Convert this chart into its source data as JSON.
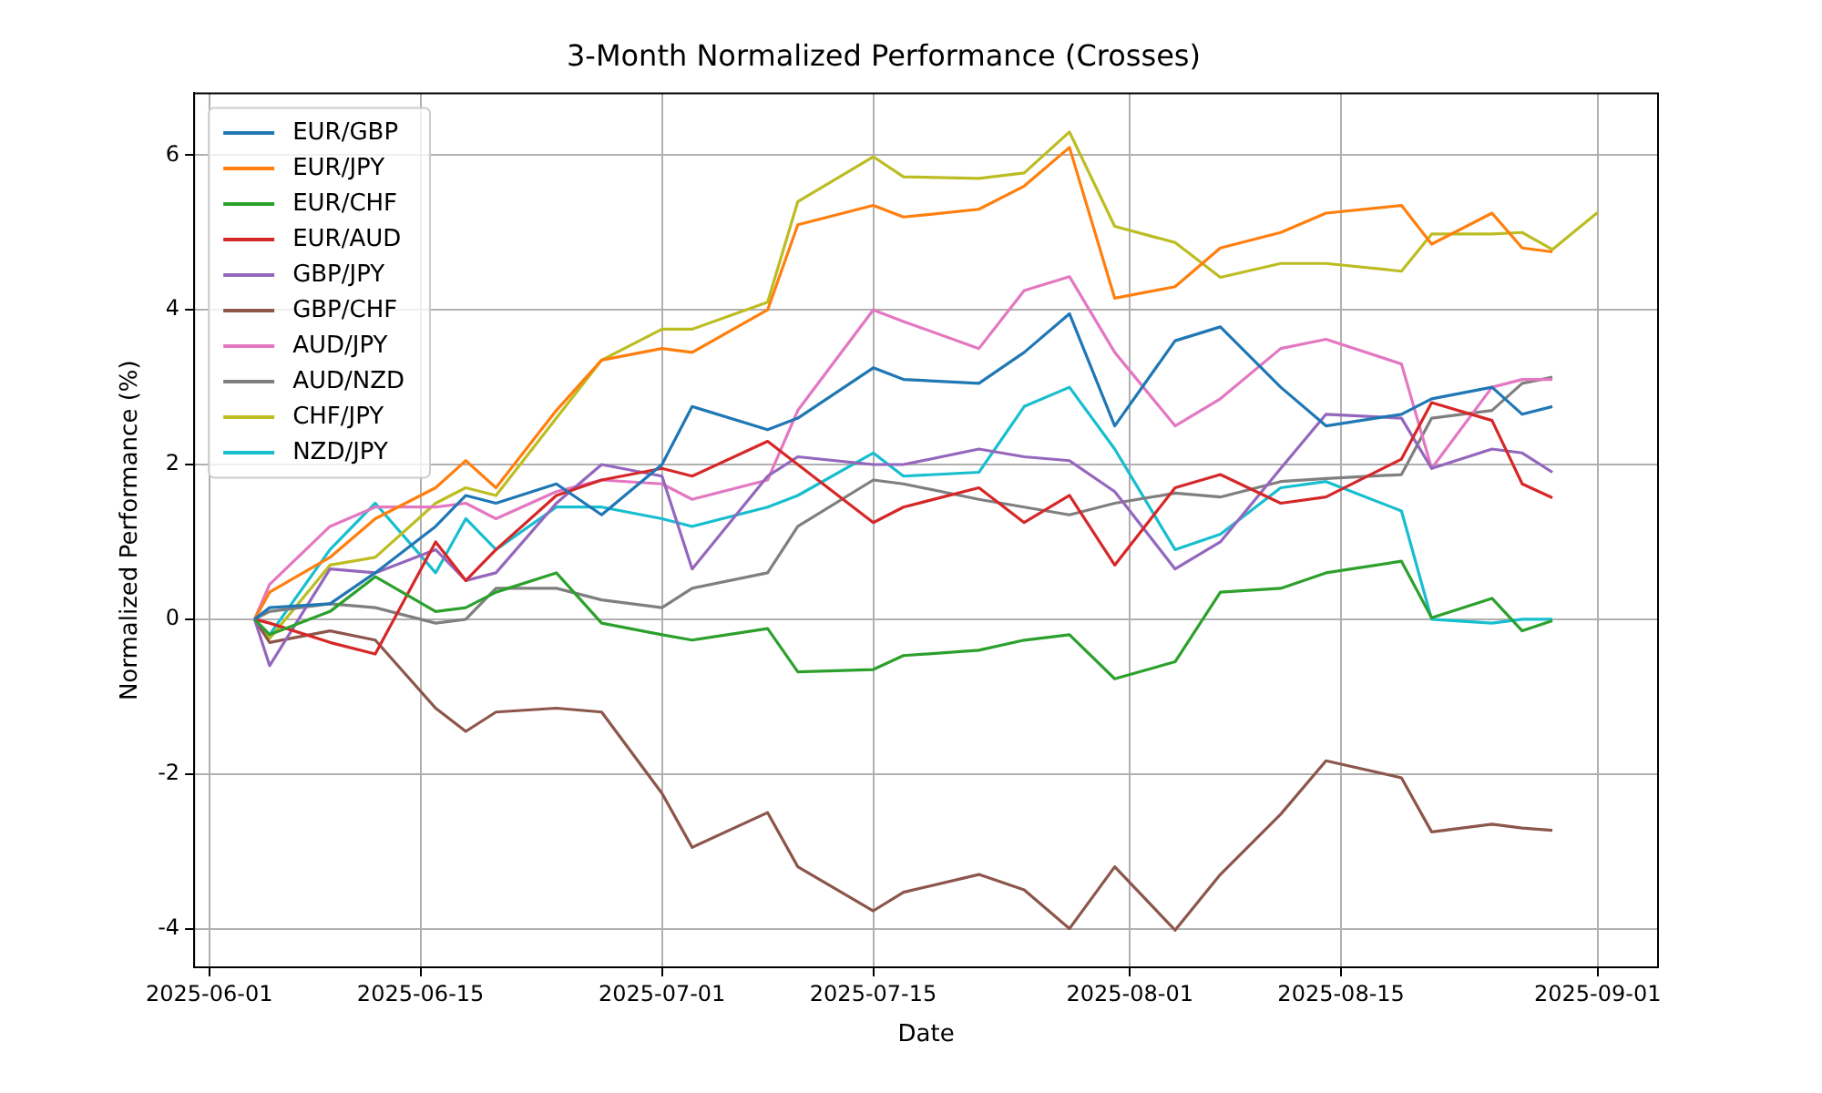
{
  "chart_data": {
    "type": "line",
    "title": "3-Month Normalized Performance (Crosses)",
    "xlabel": "Date",
    "ylabel": "Normalized Performance (%)",
    "x": [
      "2025-06-04",
      "2025-06-05",
      "2025-06-09",
      "2025-06-12",
      "2025-06-16",
      "2025-06-18",
      "2025-06-20",
      "2025-06-24",
      "2025-06-27",
      "2025-07-01",
      "2025-07-03",
      "2025-07-08",
      "2025-07-10",
      "2025-07-15",
      "2025-07-17",
      "2025-07-22",
      "2025-07-25",
      "2025-07-28",
      "2025-07-31",
      "2025-08-04",
      "2025-08-07",
      "2025-08-11",
      "2025-08-14",
      "2025-08-19",
      "2025-08-21",
      "2025-08-25",
      "2025-08-27",
      "2025-08-29"
    ],
    "xlim": [
      "2025-05-31",
      "2025-09-05"
    ],
    "xticks": [
      "2025-06-01",
      "2025-06-15",
      "2025-07-01",
      "2025-07-15",
      "2025-08-01",
      "2025-08-15",
      "2025-09-01"
    ],
    "ylim": [
      -4.5,
      6.8
    ],
    "yticks": [
      -4,
      -2,
      0,
      2,
      4,
      6
    ],
    "grid": true,
    "legend": "top left",
    "marker": "none",
    "line_style": "solid",
    "series": [
      {
        "name": "EUR/GBP",
        "color": "#1f77b4",
        "values": [
          0,
          0.15,
          0.2,
          0.6,
          1.2,
          1.6,
          1.5,
          1.75,
          1.35,
          2.0,
          2.75,
          2.45,
          2.6,
          3.25,
          3.1,
          3.05,
          3.45,
          3.95,
          2.5,
          3.6,
          3.78,
          3.0,
          2.5,
          2.65,
          2.85,
          3.0,
          2.65,
          2.75
        ]
      },
      {
        "name": "EUR/JPY",
        "color": "#ff7f0e",
        "values": [
          0,
          0.35,
          0.8,
          1.3,
          1.7,
          2.05,
          1.7,
          2.7,
          3.35,
          3.5,
          3.45,
          4.0,
          5.1,
          5.35,
          5.2,
          5.3,
          5.6,
          6.1,
          4.15,
          4.3,
          4.8,
          5.0,
          5.25,
          5.35,
          4.85,
          5.25,
          4.8,
          4.75
        ]
      },
      {
        "name": "EUR/CHF",
        "color": "#2ca02c",
        "values": [
          0,
          -0.2,
          0.1,
          0.55,
          0.1,
          0.15,
          0.35,
          0.6,
          -0.05,
          -0.2,
          -0.27,
          -0.12,
          -0.68,
          -0.65,
          -0.47,
          -0.4,
          -0.27,
          -0.2,
          -0.77,
          -0.55,
          0.35,
          0.4,
          0.6,
          0.75,
          0.02,
          0.27,
          -0.15,
          -0.02
        ]
      },
      {
        "name": "EUR/AUD",
        "color": "#d62728",
        "values": [
          0,
          -0.05,
          -0.3,
          -0.45,
          1.0,
          0.5,
          0.9,
          1.6,
          1.8,
          1.95,
          1.85,
          2.3,
          2.0,
          1.25,
          1.45,
          1.7,
          1.25,
          1.6,
          0.7,
          1.7,
          1.87,
          1.5,
          1.58,
          2.07,
          2.8,
          2.57,
          1.75,
          1.57
        ]
      },
      {
        "name": "GBP/JPY",
        "color": "#9467bd",
        "values": [
          0,
          -0.6,
          0.65,
          0.6,
          0.9,
          0.5,
          0.6,
          1.5,
          2.0,
          1.85,
          0.65,
          1.85,
          2.1,
          2.0,
          2.0,
          2.2,
          2.1,
          2.05,
          1.65,
          0.65,
          1.0,
          1.95,
          2.65,
          2.6,
          1.95,
          2.2,
          2.15,
          1.9
        ]
      },
      {
        "name": "GBP/CHF",
        "color": "#8c564b",
        "values": [
          0,
          -0.3,
          -0.15,
          -0.27,
          -1.15,
          -1.45,
          -1.2,
          -1.15,
          -1.2,
          -2.25,
          -2.95,
          -2.5,
          -3.2,
          -3.77,
          -3.53,
          -3.3,
          -3.5,
          -4.0,
          -3.2,
          -4.02,
          -3.3,
          -2.52,
          -1.83,
          -2.05,
          -2.75,
          -2.65,
          -2.7,
          -2.73
        ]
      },
      {
        "name": "AUD/JPY",
        "color": "#e377c2",
        "values": [
          0,
          0.45,
          1.2,
          1.45,
          1.45,
          1.5,
          1.3,
          1.65,
          1.8,
          1.75,
          1.55,
          1.8,
          2.7,
          4.0,
          3.85,
          3.5,
          4.25,
          4.43,
          3.45,
          2.5,
          2.85,
          3.5,
          3.62,
          3.3,
          1.95,
          3.0,
          3.1,
          3.1
        ]
      },
      {
        "name": "AUD/NZD",
        "color": "#7f7f7f",
        "values": [
          0,
          0.1,
          0.2,
          0.15,
          -0.05,
          0.0,
          0.4,
          0.4,
          0.25,
          0.15,
          0.4,
          0.6,
          1.2,
          1.8,
          1.75,
          1.55,
          1.45,
          1.35,
          1.5,
          1.63,
          1.58,
          1.78,
          1.82,
          1.87,
          2.6,
          2.7,
          3.05,
          3.13
        ]
      },
      {
        "name": "CHF/JPY",
        "color": "#bcbd22",
        "x": [
          "2025-06-04",
          "2025-06-05",
          "2025-06-09",
          "2025-06-12",
          "2025-06-16",
          "2025-06-18",
          "2025-06-20",
          "2025-06-24",
          "2025-06-27",
          "2025-07-01",
          "2025-07-03",
          "2025-07-08",
          "2025-07-10",
          "2025-07-15",
          "2025-07-17",
          "2025-07-22",
          "2025-07-25",
          "2025-07-28",
          "2025-07-31",
          "2025-08-04",
          "2025-08-07",
          "2025-08-11",
          "2025-08-14",
          "2025-08-19",
          "2025-08-21",
          "2025-08-25",
          "2025-08-27",
          "2025-08-29",
          "2025-09-01"
        ],
        "values": [
          0,
          -0.25,
          0.7,
          0.8,
          1.5,
          1.7,
          1.6,
          2.6,
          3.35,
          3.75,
          3.75,
          4.1,
          5.4,
          5.98,
          5.72,
          5.7,
          5.77,
          6.3,
          5.08,
          4.87,
          4.42,
          4.6,
          4.6,
          4.5,
          4.98,
          4.98,
          5.0,
          4.78,
          5.26
        ]
      },
      {
        "name": "NZD/JPY",
        "color": "#17becf",
        "values": [
          0,
          -0.2,
          0.9,
          1.5,
          0.6,
          1.3,
          0.9,
          1.45,
          1.45,
          1.3,
          1.2,
          1.45,
          1.6,
          2.15,
          1.85,
          1.9,
          2.75,
          3.0,
          2.2,
          0.9,
          1.1,
          1.7,
          1.78,
          1.4,
          0.0,
          -0.05,
          0.0,
          0.0
        ]
      }
    ]
  }
}
